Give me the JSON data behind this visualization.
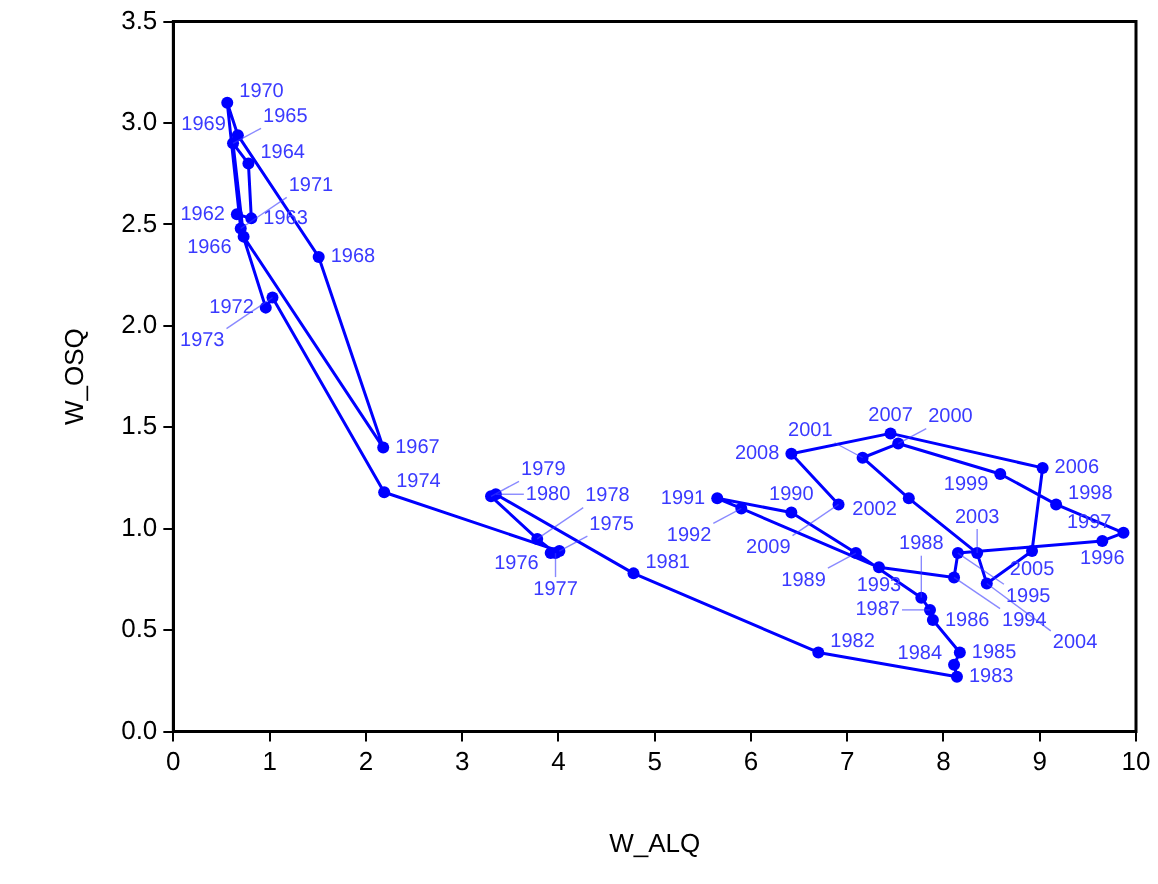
{
  "chart_data": {
    "type": "line",
    "xlabel": "W_ALQ",
    "ylabel": "W_OSQ",
    "marker": "circle",
    "grid": false,
    "legend": false,
    "xlim": [
      0,
      10
    ],
    "xticks": [
      0,
      1,
      2,
      3,
      4,
      5,
      6,
      7,
      8,
      9,
      10
    ],
    "ylim": [
      0,
      3.5
    ],
    "yticks": [
      {
        "value": 0,
        "label": "0.0"
      },
      {
        "value": 0.5,
        "label": "0.5"
      },
      {
        "value": 1,
        "label": "1.0"
      },
      {
        "value": 1.5,
        "label": "1.5"
      },
      {
        "value": 2,
        "label": "2.0"
      },
      {
        "value": 2.5,
        "label": "2.5"
      },
      {
        "value": 3,
        "label": "3.0"
      },
      {
        "value": 3.5,
        "label": "3.5"
      }
    ],
    "series": [
      {
        "color": "#0000ff",
        "x": [
          0.66,
          0.81,
          0.78,
          0.62,
          0.73,
          2.18,
          1.51,
          0.67,
          0.56,
          0.7,
          0.96,
          1.03,
          2.19,
          4.01,
          3.92,
          3.97,
          3.78,
          3.3,
          3.35,
          4.78,
          6.7,
          8.14,
          8.11,
          8.17,
          7.89,
          7.86,
          7.77,
          7.09,
          6.42,
          5.65,
          5.9,
          7.33,
          8.11,
          8.15,
          9.65,
          9.87,
          9.17,
          8.59,
          7.53,
          7.16,
          7.64,
          8.35,
          8.45,
          8.92,
          9.03,
          7.45,
          6.42,
          6.91
        ],
        "values": [
          2.55,
          2.53,
          2.8,
          2.9,
          2.44,
          1.4,
          2.34,
          2.94,
          3.1,
          2.48,
          2.09,
          2.14,
          1.18,
          0.89,
          0.88,
          0.88,
          0.95,
          1.16,
          1.17,
          0.78,
          0.39,
          0.27,
          0.33,
          0.39,
          0.55,
          0.6,
          0.66,
          0.88,
          1.08,
          1.15,
          1.1,
          0.81,
          0.76,
          0.88,
          0.94,
          0.98,
          1.12,
          1.27,
          1.42,
          1.35,
          1.15,
          0.88,
          0.73,
          0.89,
          1.3,
          1.47,
          1.37,
          1.12
        ]
      }
    ],
    "annotations": [
      {
        "text": "1962",
        "x": 0.66,
        "y": 2.55
      },
      {
        "text": "1963",
        "x": 0.81,
        "y": 2.53
      },
      {
        "text": "1964",
        "x": 0.78,
        "y": 2.8
      },
      {
        "text": "1965",
        "x": 0.62,
        "y": 2.9
      },
      {
        "text": "1966",
        "x": 0.73,
        "y": 2.44
      },
      {
        "text": "1967",
        "x": 2.18,
        "y": 1.4
      },
      {
        "text": "1968",
        "x": 1.51,
        "y": 2.34
      },
      {
        "text": "1969",
        "x": 0.67,
        "y": 2.94
      },
      {
        "text": "1970",
        "x": 0.56,
        "y": 3.1
      },
      {
        "text": "1971",
        "x": 0.7,
        "y": 2.48
      },
      {
        "text": "1972",
        "x": 0.96,
        "y": 2.09
      },
      {
        "text": "1973",
        "x": 1.03,
        "y": 2.14
      },
      {
        "text": "1974",
        "x": 2.19,
        "y": 1.18
      },
      {
        "text": "1975",
        "x": 4.01,
        "y": 0.89
      },
      {
        "text": "1976",
        "x": 3.92,
        "y": 0.88
      },
      {
        "text": "1977",
        "x": 3.97,
        "y": 0.88
      },
      {
        "text": "1978",
        "x": 3.78,
        "y": 0.95
      },
      {
        "text": "1979",
        "x": 3.3,
        "y": 1.16
      },
      {
        "text": "1980",
        "x": 3.35,
        "y": 1.17
      },
      {
        "text": "1981",
        "x": 4.78,
        "y": 0.78
      },
      {
        "text": "1982",
        "x": 6.7,
        "y": 0.39
      },
      {
        "text": "1983",
        "x": 8.14,
        "y": 0.27
      },
      {
        "text": "1984",
        "x": 8.11,
        "y": 0.33
      },
      {
        "text": "1985",
        "x": 8.17,
        "y": 0.39
      },
      {
        "text": "1986",
        "x": 7.89,
        "y": 0.55
      },
      {
        "text": "1987",
        "x": 7.86,
        "y": 0.6
      },
      {
        "text": "1988",
        "x": 7.77,
        "y": 0.66
      },
      {
        "text": "1989",
        "x": 7.09,
        "y": 0.88
      },
      {
        "text": "1990",
        "x": 6.42,
        "y": 1.08
      },
      {
        "text": "1991",
        "x": 5.65,
        "y": 1.15
      },
      {
        "text": "1992",
        "x": 5.9,
        "y": 1.1
      },
      {
        "text": "1993",
        "x": 7.33,
        "y": 0.81
      },
      {
        "text": "1994",
        "x": 8.11,
        "y": 0.76
      },
      {
        "text": "1995",
        "x": 8.15,
        "y": 0.88
      },
      {
        "text": "1996",
        "x": 9.65,
        "y": 0.94
      },
      {
        "text": "1997",
        "x": 9.87,
        "y": 0.98
      },
      {
        "text": "1998",
        "x": 9.17,
        "y": 1.12
      },
      {
        "text": "1999",
        "x": 8.59,
        "y": 1.27
      },
      {
        "text": "2000",
        "x": 7.53,
        "y": 1.42
      },
      {
        "text": "2001",
        "x": 7.16,
        "y": 1.35
      },
      {
        "text": "2002",
        "x": 7.64,
        "y": 1.15
      },
      {
        "text": "2003",
        "x": 8.35,
        "y": 0.88
      },
      {
        "text": "2004",
        "x": 8.45,
        "y": 0.73
      },
      {
        "text": "2005",
        "x": 8.92,
        "y": 0.89
      },
      {
        "text": "2006",
        "x": 9.03,
        "y": 1.3
      },
      {
        "text": "2007",
        "x": 7.45,
        "y": 1.47
      },
      {
        "text": "2008",
        "x": 6.42,
        "y": 1.37
      },
      {
        "text": "2009",
        "x": 6.91,
        "y": 1.12
      }
    ]
  }
}
